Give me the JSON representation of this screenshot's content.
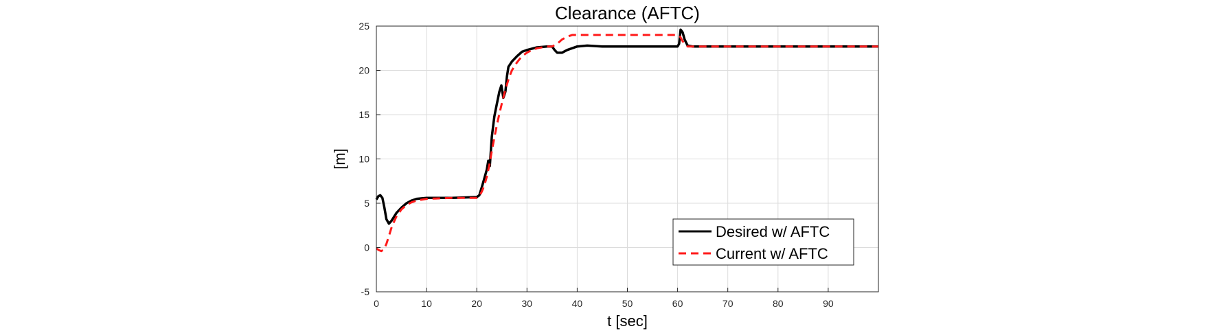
{
  "chart_data": {
    "type": "line",
    "title": "Clearance (AFTC)",
    "xlabel": "t [sec]",
    "ylabel": "[m]",
    "xlim": [
      0,
      100
    ],
    "ylim": [
      -5,
      25
    ],
    "xticks": [
      0,
      10,
      20,
      30,
      40,
      50,
      60,
      70,
      80,
      90
    ],
    "yticks": [
      -5,
      0,
      5,
      10,
      15,
      20,
      25
    ],
    "grid": true,
    "legend_position": "bottom-right",
    "series": [
      {
        "name": "Desired w/ AFTC",
        "color": "#000000",
        "style": "solid",
        "points": [
          [
            0,
            5.4
          ],
          [
            0.4,
            5.8
          ],
          [
            0.8,
            5.9
          ],
          [
            1.2,
            5.6
          ],
          [
            1.6,
            4.5
          ],
          [
            2.0,
            3.2
          ],
          [
            2.5,
            2.7
          ],
          [
            3,
            3.0
          ],
          [
            4,
            3.9
          ],
          [
            5,
            4.5
          ],
          [
            6,
            5.0
          ],
          [
            7,
            5.3
          ],
          [
            8,
            5.5
          ],
          [
            10,
            5.6
          ],
          [
            15,
            5.6
          ],
          [
            20,
            5.7
          ],
          [
            20.5,
            5.9
          ],
          [
            21,
            6.8
          ],
          [
            21.5,
            7.8
          ],
          [
            22,
            8.8
          ],
          [
            22.3,
            9.8
          ],
          [
            22.6,
            9.2
          ],
          [
            23,
            12.5
          ],
          [
            23.5,
            14.8
          ],
          [
            24,
            16.2
          ],
          [
            24.5,
            17.6
          ],
          [
            24.9,
            18.3
          ],
          [
            25.3,
            16.9
          ],
          [
            25.7,
            17.6
          ],
          [
            26,
            19.3
          ],
          [
            26.3,
            20.4
          ],
          [
            27,
            21.0
          ],
          [
            28,
            21.6
          ],
          [
            29,
            22.1
          ],
          [
            30,
            22.3
          ],
          [
            32,
            22.6
          ],
          [
            34,
            22.7
          ],
          [
            35,
            22.7
          ],
          [
            35.5,
            22.3
          ],
          [
            36,
            22.0
          ],
          [
            37,
            22.0
          ],
          [
            38,
            22.3
          ],
          [
            40,
            22.7
          ],
          [
            42,
            22.8
          ],
          [
            45,
            22.7
          ],
          [
            50,
            22.7
          ],
          [
            55,
            22.7
          ],
          [
            60,
            22.7
          ],
          [
            60.3,
            23.0
          ],
          [
            60.6,
            24.6
          ],
          [
            61,
            24.3
          ],
          [
            61.4,
            23.5
          ],
          [
            62,
            22.8
          ],
          [
            63,
            22.7
          ],
          [
            70,
            22.7
          ],
          [
            80,
            22.7
          ],
          [
            90,
            22.7
          ],
          [
            100,
            22.7
          ]
        ]
      },
      {
        "name": "Current w/ AFTC",
        "color": "#ff1a1a",
        "style": "dashed",
        "points": [
          [
            0,
            -0.1
          ],
          [
            0.5,
            -0.3
          ],
          [
            1,
            -0.4
          ],
          [
            1.5,
            -0.2
          ],
          [
            2,
            0.4
          ],
          [
            2.5,
            1.3
          ],
          [
            3,
            2.2
          ],
          [
            3.5,
            2.9
          ],
          [
            4,
            3.5
          ],
          [
            5,
            4.3
          ],
          [
            6,
            4.8
          ],
          [
            7,
            5.1
          ],
          [
            8,
            5.3
          ],
          [
            10,
            5.5
          ],
          [
            15,
            5.6
          ],
          [
            20,
            5.6
          ],
          [
            20.5,
            5.8
          ],
          [
            21,
            6.3
          ],
          [
            21.5,
            7.0
          ],
          [
            22,
            8.0
          ],
          [
            22.5,
            9.3
          ],
          [
            23,
            10.9
          ],
          [
            23.5,
            12.4
          ],
          [
            24,
            13.8
          ],
          [
            24.5,
            15.1
          ],
          [
            25,
            16.3
          ],
          [
            25.5,
            17.4
          ],
          [
            26,
            18.4
          ],
          [
            26.5,
            19.3
          ],
          [
            27,
            20.0
          ],
          [
            28,
            20.9
          ],
          [
            29,
            21.6
          ],
          [
            30,
            22.0
          ],
          [
            31,
            22.3
          ],
          [
            32,
            22.5
          ],
          [
            34,
            22.7
          ],
          [
            35,
            22.7
          ],
          [
            36,
            23.0
          ],
          [
            37,
            23.5
          ],
          [
            38,
            23.8
          ],
          [
            39,
            24.0
          ],
          [
            40,
            24.0
          ],
          [
            50,
            24.0
          ],
          [
            60,
            24.0
          ],
          [
            60.5,
            23.8
          ],
          [
            61,
            23.3
          ],
          [
            61.5,
            22.9
          ],
          [
            62,
            22.7
          ],
          [
            70,
            22.7
          ],
          [
            80,
            22.7
          ],
          [
            90,
            22.7
          ],
          [
            100,
            22.7
          ]
        ]
      }
    ]
  }
}
